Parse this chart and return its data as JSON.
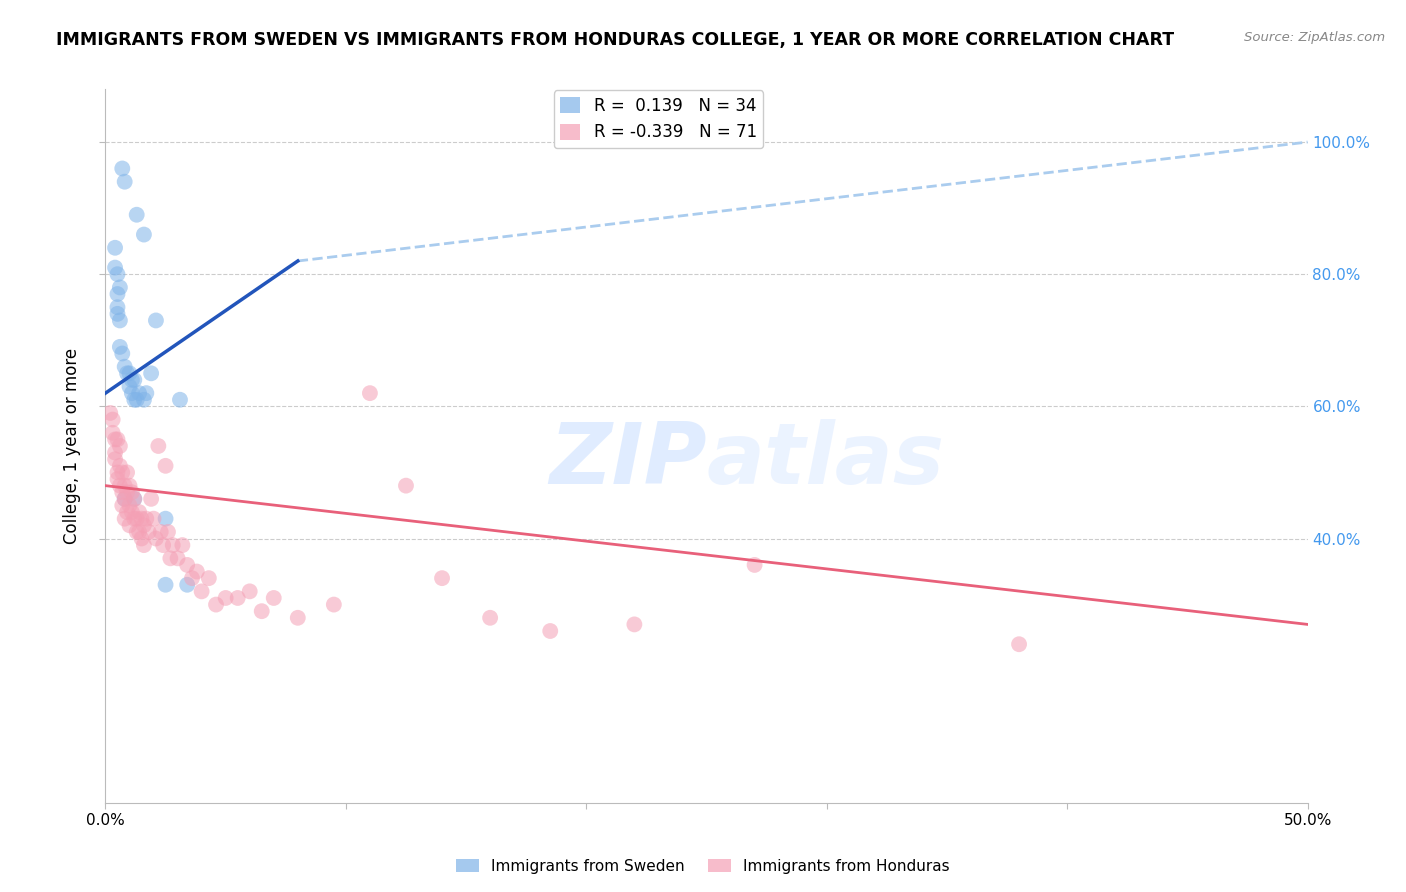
{
  "title": "IMMIGRANTS FROM SWEDEN VS IMMIGRANTS FROM HONDURAS COLLEGE, 1 YEAR OR MORE CORRELATION CHART",
  "source": "Source: ZipAtlas.com",
  "ylabel": "College, 1 year or more",
  "xlim": [
    0.0,
    0.5
  ],
  "ylim": [
    0.0,
    1.08
  ],
  "legend_sweden_r": "0.139",
  "legend_sweden_n": "34",
  "legend_honduras_r": "-0.339",
  "legend_honduras_n": "71",
  "sweden_color": "#7FB3E8",
  "honduras_color": "#F4A0B5",
  "sweden_line_color": "#2255BB",
  "honduras_line_color": "#E8607A",
  "dashed_line_color": "#AACCEE",
  "sweden_scatter_x": [
    0.005,
    0.007,
    0.008,
    0.013,
    0.016,
    0.004,
    0.005,
    0.005,
    0.006,
    0.006,
    0.007,
    0.008,
    0.009,
    0.01,
    0.011,
    0.011,
    0.012,
    0.012,
    0.013,
    0.014,
    0.016,
    0.019,
    0.021,
    0.025,
    0.031,
    0.034,
    0.004,
    0.005,
    0.006,
    0.008,
    0.01,
    0.012,
    0.017,
    0.025
  ],
  "sweden_scatter_y": [
    0.75,
    0.96,
    0.94,
    0.89,
    0.86,
    0.84,
    0.77,
    0.74,
    0.73,
    0.69,
    0.68,
    0.66,
    0.65,
    0.65,
    0.64,
    0.62,
    0.61,
    0.64,
    0.61,
    0.62,
    0.61,
    0.65,
    0.73,
    0.43,
    0.61,
    0.33,
    0.81,
    0.8,
    0.78,
    0.46,
    0.63,
    0.46,
    0.62,
    0.33
  ],
  "honduras_scatter_x": [
    0.002,
    0.003,
    0.003,
    0.004,
    0.004,
    0.004,
    0.005,
    0.005,
    0.005,
    0.006,
    0.006,
    0.006,
    0.007,
    0.007,
    0.007,
    0.008,
    0.008,
    0.008,
    0.009,
    0.009,
    0.009,
    0.01,
    0.01,
    0.01,
    0.011,
    0.011,
    0.012,
    0.012,
    0.013,
    0.013,
    0.014,
    0.014,
    0.015,
    0.015,
    0.016,
    0.016,
    0.017,
    0.018,
    0.019,
    0.02,
    0.021,
    0.022,
    0.023,
    0.024,
    0.025,
    0.026,
    0.027,
    0.028,
    0.03,
    0.032,
    0.034,
    0.036,
    0.038,
    0.04,
    0.043,
    0.046,
    0.05,
    0.055,
    0.06,
    0.065,
    0.07,
    0.08,
    0.095,
    0.11,
    0.125,
    0.14,
    0.16,
    0.185,
    0.22,
    0.27,
    0.38
  ],
  "honduras_scatter_y": [
    0.59,
    0.56,
    0.58,
    0.53,
    0.55,
    0.52,
    0.55,
    0.5,
    0.49,
    0.54,
    0.51,
    0.48,
    0.5,
    0.47,
    0.45,
    0.48,
    0.46,
    0.43,
    0.5,
    0.47,
    0.44,
    0.48,
    0.45,
    0.42,
    0.47,
    0.44,
    0.46,
    0.43,
    0.43,
    0.41,
    0.44,
    0.41,
    0.43,
    0.4,
    0.42,
    0.39,
    0.43,
    0.41,
    0.46,
    0.43,
    0.4,
    0.54,
    0.41,
    0.39,
    0.51,
    0.41,
    0.37,
    0.39,
    0.37,
    0.39,
    0.36,
    0.34,
    0.35,
    0.32,
    0.34,
    0.3,
    0.31,
    0.31,
    0.32,
    0.29,
    0.31,
    0.28,
    0.3,
    0.62,
    0.48,
    0.34,
    0.28,
    0.26,
    0.27,
    0.36,
    0.24
  ],
  "sweden_line_x": [
    0.0,
    0.08
  ],
  "sweden_line_y": [
    0.62,
    0.82
  ],
  "dashed_line_x": [
    0.08,
    0.5
  ],
  "dashed_line_y": [
    0.82,
    1.0
  ],
  "honduras_line_x": [
    0.0,
    0.5
  ],
  "honduras_line_y": [
    0.48,
    0.27
  ]
}
